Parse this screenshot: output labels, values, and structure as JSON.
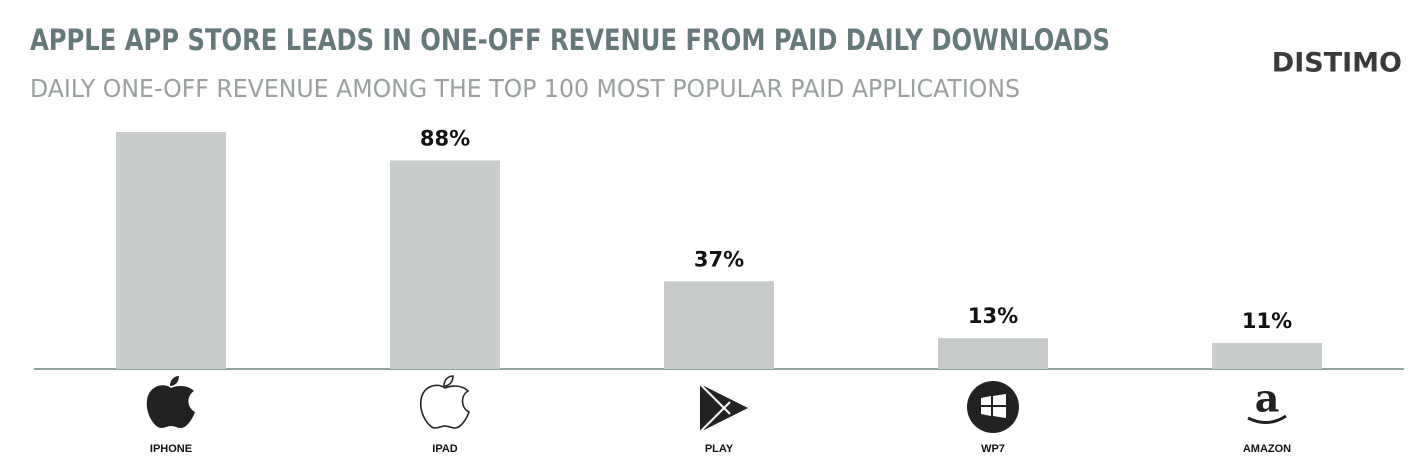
{
  "chart_data": {
    "type": "bar",
    "title": "APPLE APP STORE LEADS IN ONE-OFF REVENUE FROM PAID DAILY DOWNLOADS",
    "subtitle": "DAILY ONE-OFF REVENUE AMONG THE TOP 100 MOST POPULAR PAID APPLICATIONS",
    "brand": "DISTIMO",
    "categories": [
      "IPHONE",
      "IPAD",
      "PLAY",
      "WP7",
      "AMAZON"
    ],
    "values": [
      100,
      88,
      37,
      13,
      11
    ],
    "value_labels": [
      null,
      "88%",
      "37%",
      "13%",
      "11%"
    ],
    "color": "#c8cdca",
    "ylim": [
      0,
      100
    ]
  }
}
